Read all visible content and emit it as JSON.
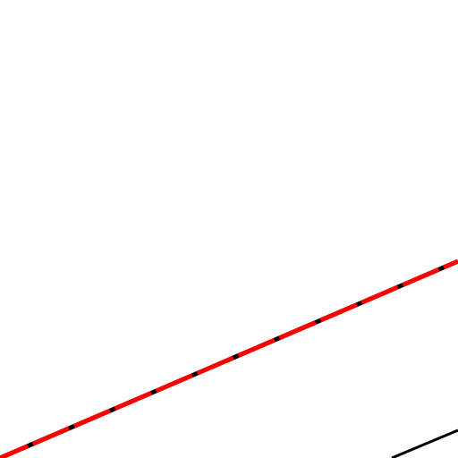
{
  "colors": {
    "background": "#ffffff",
    "dashed_line_base": "#000000",
    "dashed_line_overlay": "#ff0000",
    "solid_line": "#000000"
  }
}
